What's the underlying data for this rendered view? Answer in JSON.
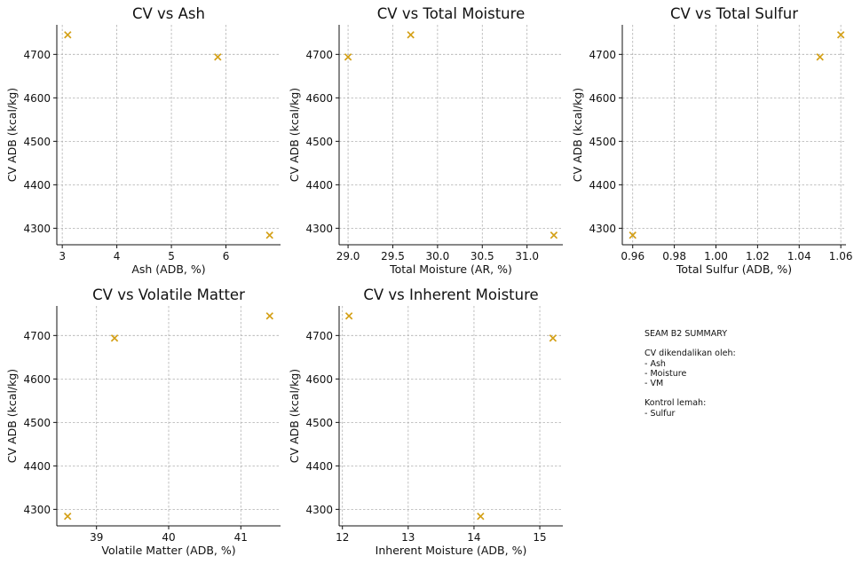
{
  "chart_data": [
    {
      "type": "scatter",
      "title": "CV vs Ash",
      "xlabel": "Ash (ADB, %)",
      "ylabel": "CV ADB (kcal/kg)",
      "xlim": [
        2.9,
        7.0
      ],
      "ylim": [
        4262,
        4768
      ],
      "xticks": [
        3,
        4,
        5,
        6
      ],
      "xtick_labels": [
        "3",
        "4",
        "5",
        "6"
      ],
      "yticks": [
        4300,
        4400,
        4500,
        4600,
        4700
      ],
      "ytick_labels": [
        "4300",
        "4400",
        "4500",
        "4600",
        "4700"
      ],
      "grid": true,
      "marker": "x",
      "color": "#d4a017",
      "points": [
        {
          "x": 3.1,
          "y": 4745
        },
        {
          "x": 5.85,
          "y": 4694
        },
        {
          "x": 6.8,
          "y": 4284
        }
      ]
    },
    {
      "type": "scatter",
      "title": "CV vs Total Moisture",
      "xlabel": "Total Moisture (AR, %)",
      "ylabel": "CV ADB (kcal/kg)",
      "xlim": [
        28.9,
        31.4
      ],
      "ylim": [
        4262,
        4768
      ],
      "xticks": [
        29.0,
        29.5,
        30.0,
        30.5,
        31.0
      ],
      "xtick_labels": [
        "29.0",
        "29.5",
        "30.0",
        "30.5",
        "31.0"
      ],
      "yticks": [
        4300,
        4400,
        4500,
        4600,
        4700
      ],
      "ytick_labels": [
        "4300",
        "4400",
        "4500",
        "4600",
        "4700"
      ],
      "grid": true,
      "marker": "x",
      "color": "#d4a017",
      "points": [
        {
          "x": 29.0,
          "y": 4694
        },
        {
          "x": 29.7,
          "y": 4745
        },
        {
          "x": 31.3,
          "y": 4284
        }
      ]
    },
    {
      "type": "scatter",
      "title": "CV vs Total Sulfur",
      "xlabel": "Total Sulfur (ADB, %)",
      "ylabel": "CV ADB (kcal/kg)",
      "xlim": [
        0.955,
        1.0625
      ],
      "ylim": [
        4262,
        4768
      ],
      "xticks": [
        0.96,
        0.98,
        1.0,
        1.02,
        1.04,
        1.06
      ],
      "xtick_labels": [
        "0.96",
        "0.98",
        "1.00",
        "1.02",
        "1.04",
        "1.06"
      ],
      "yticks": [
        4300,
        4400,
        4500,
        4600,
        4700
      ],
      "ytick_labels": [
        "4300",
        "4400",
        "4500",
        "4600",
        "4700"
      ],
      "grid": true,
      "marker": "x",
      "color": "#d4a017",
      "points": [
        {
          "x": 0.96,
          "y": 4284
        },
        {
          "x": 1.05,
          "y": 4694
        },
        {
          "x": 1.06,
          "y": 4745
        }
      ]
    },
    {
      "type": "scatter",
      "title": "CV vs Volatile Matter",
      "xlabel": "Volatile Matter (ADB, %)",
      "ylabel": "CV ADB (kcal/kg)",
      "xlim": [
        38.45,
        41.55
      ],
      "ylim": [
        4262,
        4768
      ],
      "xticks": [
        39,
        40,
        41
      ],
      "xtick_labels": [
        "39",
        "40",
        "41"
      ],
      "yticks": [
        4300,
        4400,
        4500,
        4600,
        4700
      ],
      "ytick_labels": [
        "4300",
        "4400",
        "4500",
        "4600",
        "4700"
      ],
      "grid": true,
      "marker": "x",
      "color": "#d4a017",
      "points": [
        {
          "x": 38.6,
          "y": 4284
        },
        {
          "x": 39.25,
          "y": 4694
        },
        {
          "x": 41.4,
          "y": 4745
        }
      ]
    },
    {
      "type": "scatter",
      "title": "CV vs Inherent Moisture",
      "xlabel": "Inherent Moisture (ADB, %)",
      "ylabel": "CV ADB (kcal/kg)",
      "xlim": [
        11.95,
        15.35
      ],
      "ylim": [
        4262,
        4768
      ],
      "xticks": [
        12,
        13,
        14,
        15
      ],
      "xtick_labels": [
        "12",
        "13",
        "14",
        "15"
      ],
      "yticks": [
        4300,
        4400,
        4500,
        4600,
        4700
      ],
      "ytick_labels": [
        "4300",
        "4400",
        "4500",
        "4600",
        "4700"
      ],
      "grid": true,
      "marker": "x",
      "color": "#d4a017",
      "points": [
        {
          "x": 12.1,
          "y": 4745
        },
        {
          "x": 14.1,
          "y": 4284
        },
        {
          "x": 15.2,
          "y": 4694
        }
      ]
    }
  ],
  "summary": {
    "heading": "SEAM B2 SUMMARY",
    "controlled_label": "CV dikendalikan oleh:",
    "controlled_items": [
      "- Ash",
      "- Moisture",
      "- VM"
    ],
    "weak_label": "Kontrol lemah:",
    "weak_items": [
      "- Sulfur"
    ]
  }
}
